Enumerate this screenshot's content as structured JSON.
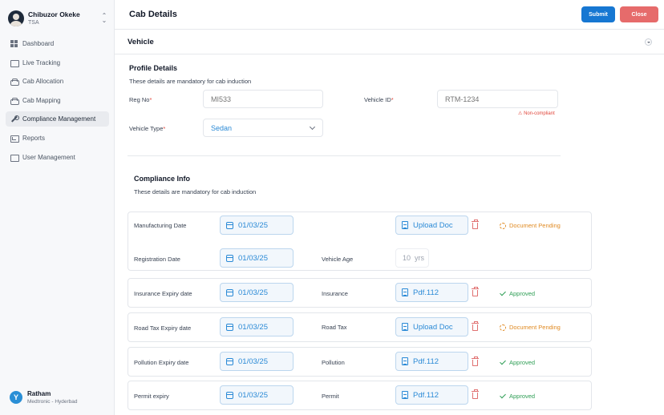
{
  "user": {
    "name": "Chibuzor Okeke",
    "role": "TSA"
  },
  "nav": [
    {
      "label": "Dashboard",
      "icon": "grid-icon"
    },
    {
      "label": "Live Tracking",
      "icon": "tracking-icon"
    },
    {
      "label": "Cab Allocation",
      "icon": "car-icon"
    },
    {
      "label": "Cab Mapping",
      "icon": "car-icon"
    },
    {
      "label": "Compliance Management",
      "icon": "wrench-icon",
      "active": true
    },
    {
      "label": "Reports",
      "icon": "reports-icon"
    },
    {
      "label": "User Management",
      "icon": "users-icon"
    }
  ],
  "org": {
    "name": "Ratham",
    "sub": "Medtronic - Hyderbad"
  },
  "header": {
    "title": "Cab Details",
    "submit_label": "Submit",
    "close_label": "Close"
  },
  "section": {
    "title": "Vehicle"
  },
  "profile": {
    "title": "Profile Details",
    "subtitle": "These details are mandatory for cab induction",
    "reg_no_label": "Reg No",
    "reg_no_placeholder": "MI533",
    "vehicle_id_label": "Vehicle ID",
    "vehicle_id_placeholder": "RTM-1234",
    "non_compliant": "Non-compliant",
    "vehicle_type_label": "Vehicle Type",
    "vehicle_type_value": "Sedan",
    "required_mark": "*"
  },
  "compliance": {
    "title": "Compliance Info",
    "subtitle": "These details are mandatory for cab induction",
    "manufacturing_label": "Manufacturing Date",
    "manufacturing_date": "01/03/25",
    "manufacturing_doc": "Upload Doc",
    "manufacturing_status": "Document Pending",
    "registration_label": "Registration Date",
    "registration_date": "01/03/25",
    "vehicle_age_label": "Vehicle Age",
    "vehicle_age_value": "10",
    "vehicle_age_unit": "yrs",
    "rows": [
      {
        "label": "Insurance Expiry date",
        "date": "01/03/25",
        "doc_label": "Insurance",
        "doc": "Pdf.112",
        "status": "Approved"
      },
      {
        "label": "Road Tax Expiry date",
        "date": "01/03/25",
        "doc_label": "Road Tax",
        "doc": "Upload Doc",
        "status": "Document Pending"
      },
      {
        "label": "Pollution Expiry date",
        "date": "01/03/25",
        "doc_label": "Pollution",
        "doc": "Pdf.112",
        "status": "Approved"
      },
      {
        "label": "Permit expiry",
        "date": "01/03/25",
        "doc_label": "Permit",
        "doc": "Pdf.112",
        "status": "Approved"
      }
    ]
  },
  "colors": {
    "primary": "#1677d2",
    "danger": "#e66b6b",
    "pending": "#e08a22",
    "approved": "#2e9e55"
  }
}
